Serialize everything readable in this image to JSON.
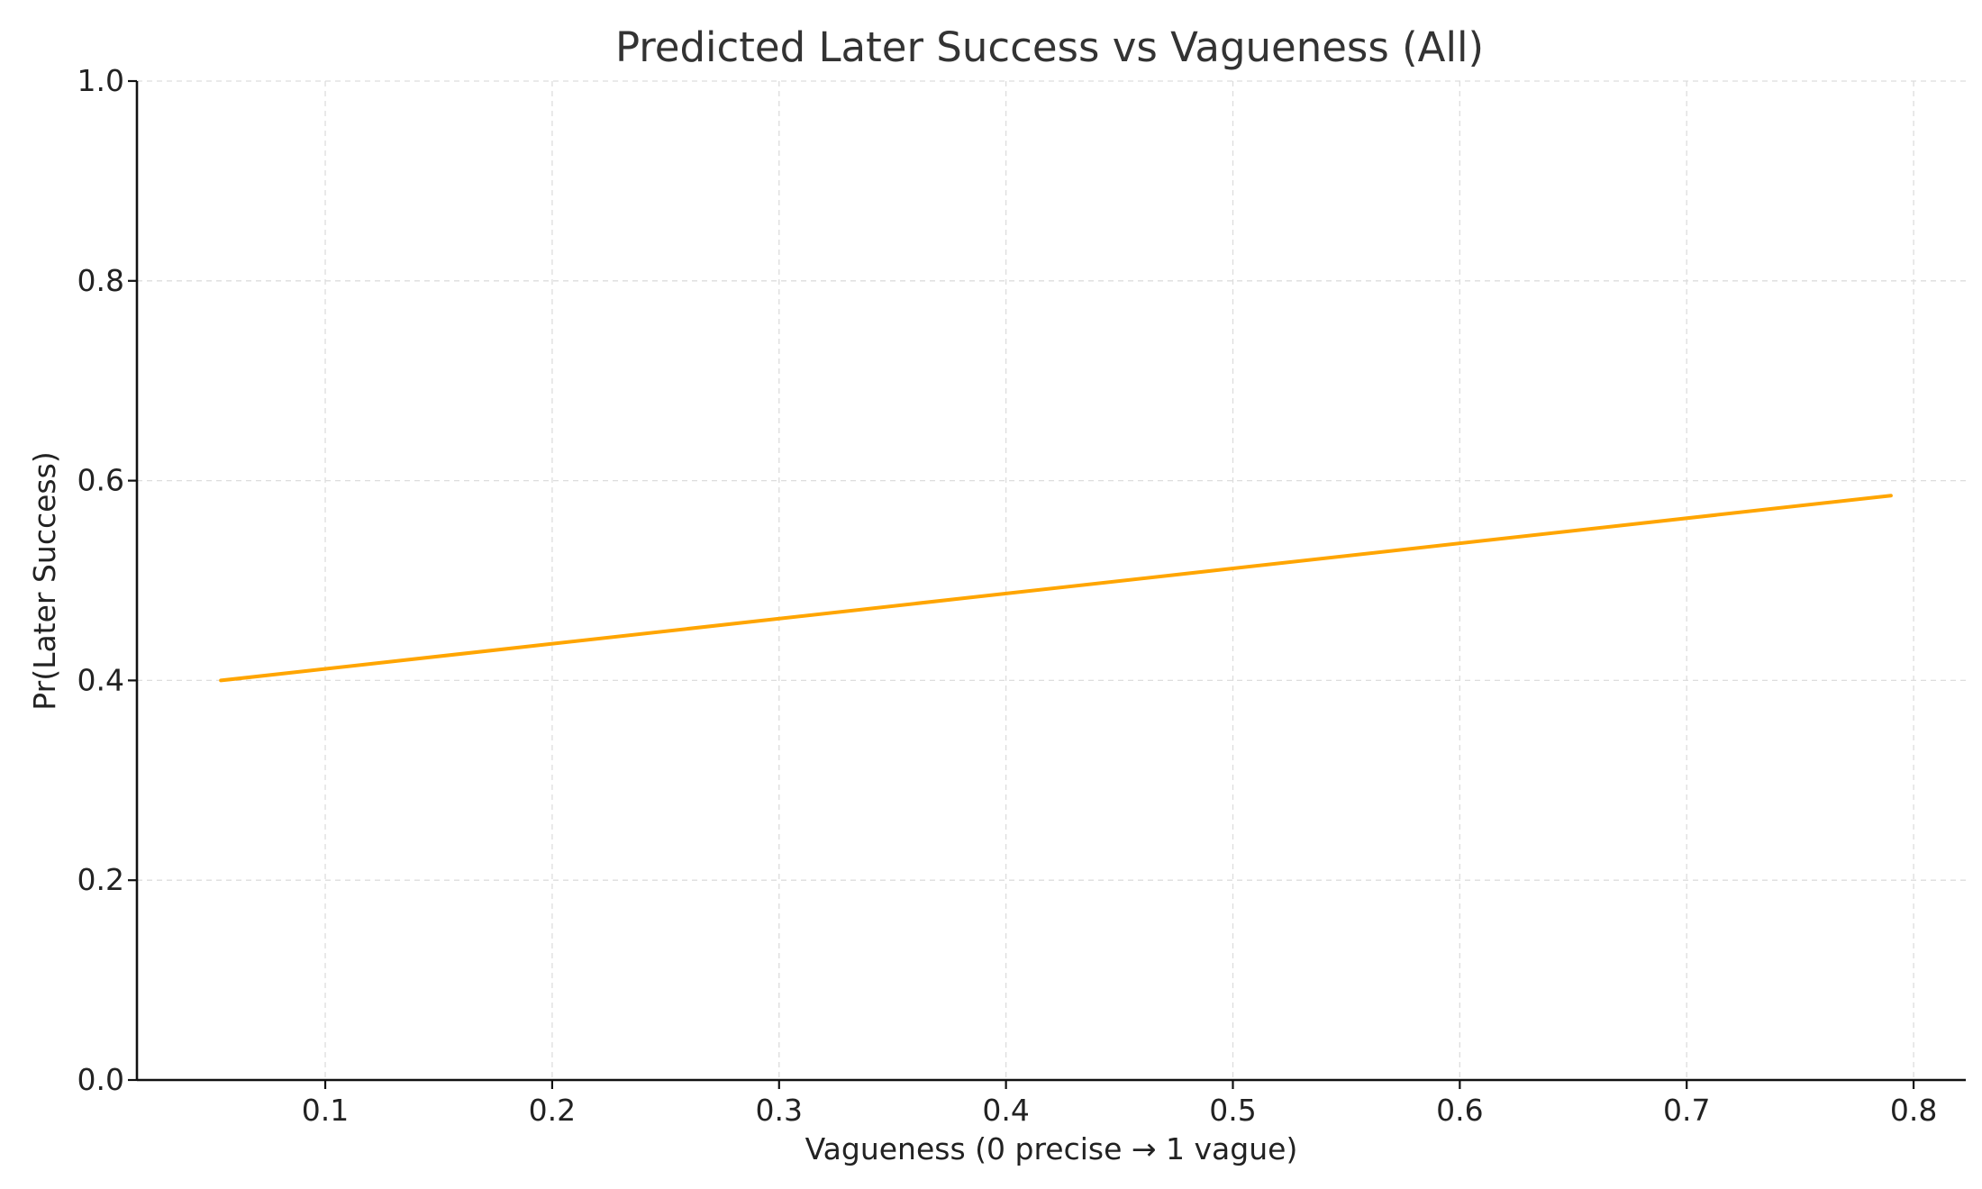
{
  "chart_data": {
    "type": "line",
    "title": "Predicted Later Success vs Vagueness (All)",
    "xlabel": "Vagueness (0 precise → 1 vague)",
    "ylabel": "Pr(Later Success)",
    "xlim": [
      0.017,
      0.823
    ],
    "ylim": [
      0.0,
      1.0
    ],
    "xticks": [
      "0.1",
      "0.2",
      "0.3",
      "0.4",
      "0.5",
      "0.6",
      "0.7",
      "0.8"
    ],
    "yticks": [
      "0.0",
      "0.2",
      "0.4",
      "0.6",
      "0.8",
      "1.0"
    ],
    "grid": true,
    "series": [
      {
        "color": "#FFA500",
        "x": [
          0.054,
          0.79
        ],
        "y": [
          0.4,
          0.585
        ]
      }
    ]
  }
}
